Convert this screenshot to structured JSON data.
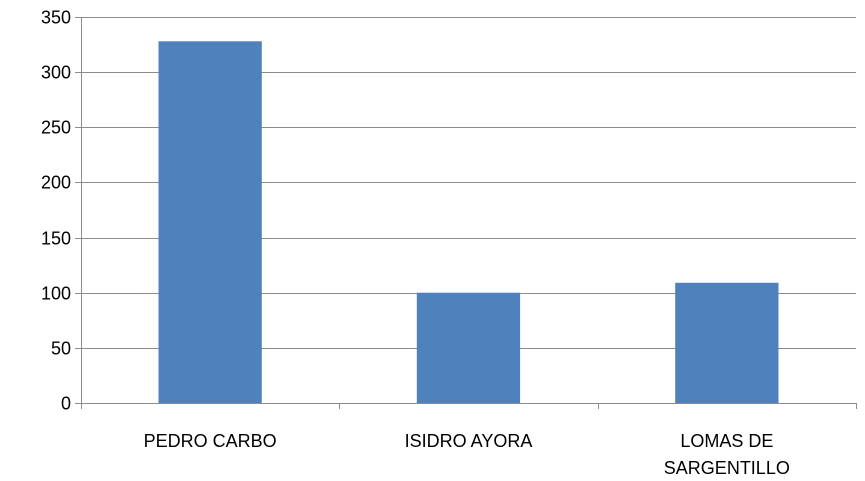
{
  "chart_data": {
    "type": "bar",
    "title": "",
    "xlabel": "",
    "ylabel": "",
    "categories": [
      [
        "PEDRO CARBO"
      ],
      [
        "ISIDRO AYORA"
      ],
      [
        "LOMAS DE",
        "SARGENTILLO"
      ]
    ],
    "values": [
      328,
      100,
      109
    ],
    "ylim": [
      0,
      350
    ],
    "yticks": [
      0,
      50,
      100,
      150,
      200,
      250,
      300,
      350
    ],
    "grid": true,
    "legend": "none",
    "bar_color": "#4F81BD",
    "grid_color": "#8C8C8C"
  }
}
